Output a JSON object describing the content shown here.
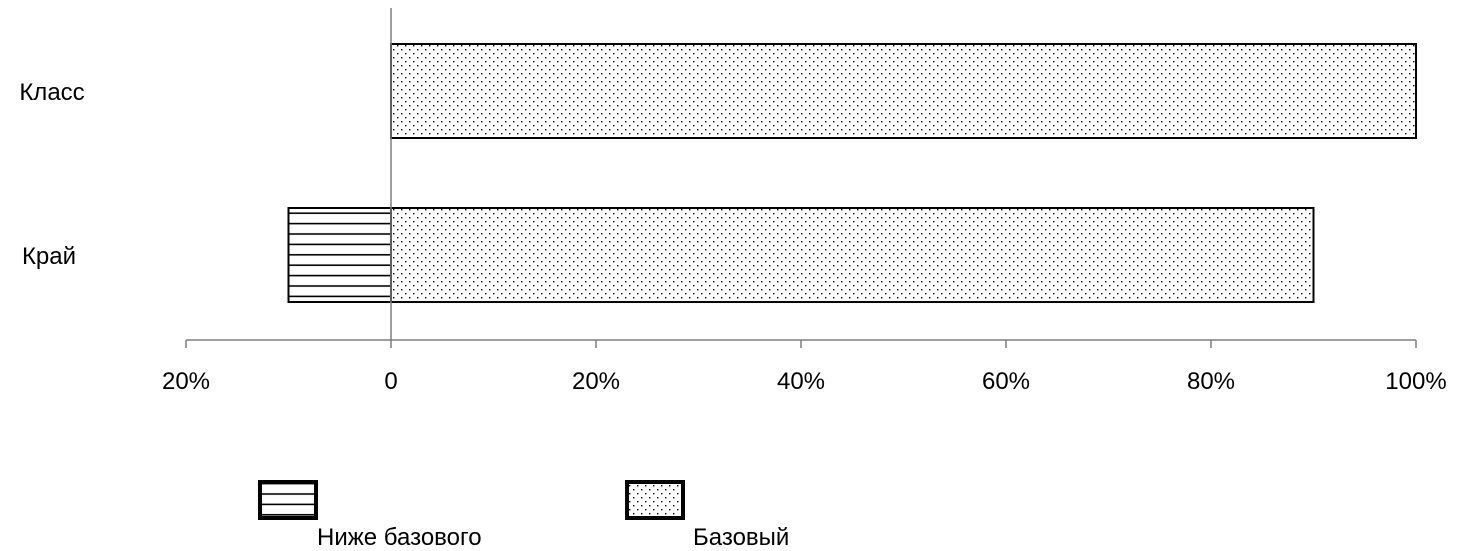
{
  "chart_data": {
    "type": "bar",
    "orientation": "horizontal",
    "stacked": true,
    "categories": [
      "Класс",
      "Край"
    ],
    "series": [
      {
        "name": "Ниже базового",
        "values": [
          0,
          -10
        ],
        "pattern": "horizontal-lines"
      },
      {
        "name": "Базовый",
        "values": [
          100,
          90
        ],
        "pattern": "dots"
      }
    ],
    "x_ticks": [
      {
        "value": -20,
        "label": "20%"
      },
      {
        "value": 0,
        "label": "0"
      },
      {
        "value": 20,
        "label": "20%"
      },
      {
        "value": 40,
        "label": "40%"
      },
      {
        "value": 60,
        "label": "60%"
      },
      {
        "value": 80,
        "label": "80%"
      },
      {
        "value": 100,
        "label": "100%"
      }
    ],
    "xlim": [
      -20,
      100
    ],
    "grid": false,
    "legend_position": "bottom",
    "title": "",
    "xlabel": "",
    "ylabel": ""
  },
  "colors": {
    "stroke": "#000000",
    "axis": "#7f7f7f",
    "background": "#ffffff"
  }
}
